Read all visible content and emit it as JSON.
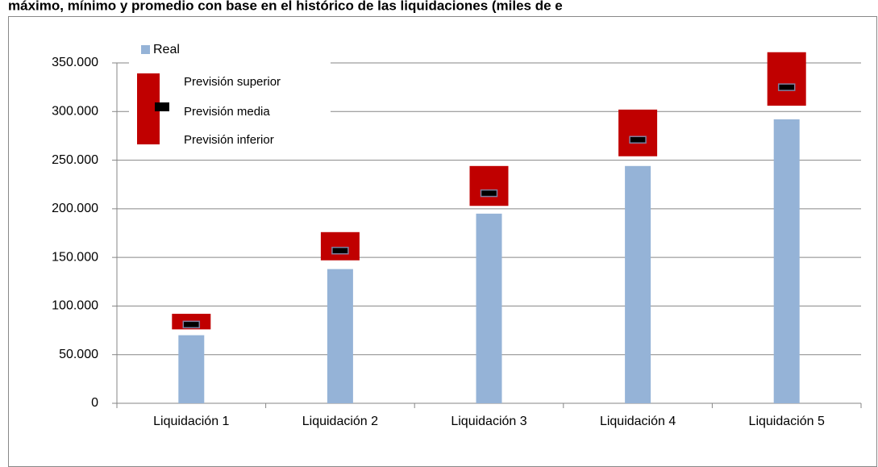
{
  "chart_data": {
    "type": "bar",
    "title": "máximo, mínimo y promedio con base en el histórico de las liquidaciones (miles de e",
    "categories": [
      "Liquidación 1",
      "Liquidación 2",
      "Liquidación 3",
      "Liquidación 4",
      "Liquidación 5"
    ],
    "series": [
      {
        "name": "Real",
        "color": "#95b3d7",
        "values": [
          70000,
          138000,
          195000,
          244000,
          292000
        ]
      },
      {
        "name": "Previsión superior",
        "color": "#c00000",
        "values": [
          92000,
          176000,
          244000,
          302000,
          361000
        ]
      },
      {
        "name": "Previsión media",
        "color": "#000000",
        "values": [
          81000,
          157000,
          216000,
          271000,
          325000
        ]
      },
      {
        "name": "Previsión inferior",
        "color": "#c00000",
        "values": [
          76000,
          147000,
          203000,
          254000,
          306000
        ]
      }
    ],
    "ylim": [
      0,
      350000
    ],
    "yticks": [
      0,
      {
        "value": 50000,
        "label": "50.000"
      },
      {
        "value": 100000,
        "label": "100.000"
      },
      {
        "value": 150000,
        "label": "150.000"
      },
      {
        "value": 200000,
        "label": "200.000"
      },
      {
        "value": 250000,
        "label": "250.000"
      },
      {
        "value": 300000,
        "label": "300.000"
      },
      {
        "value": 350000,
        "label": "350.000"
      }
    ],
    "grid": true,
    "legend": "top-left"
  }
}
